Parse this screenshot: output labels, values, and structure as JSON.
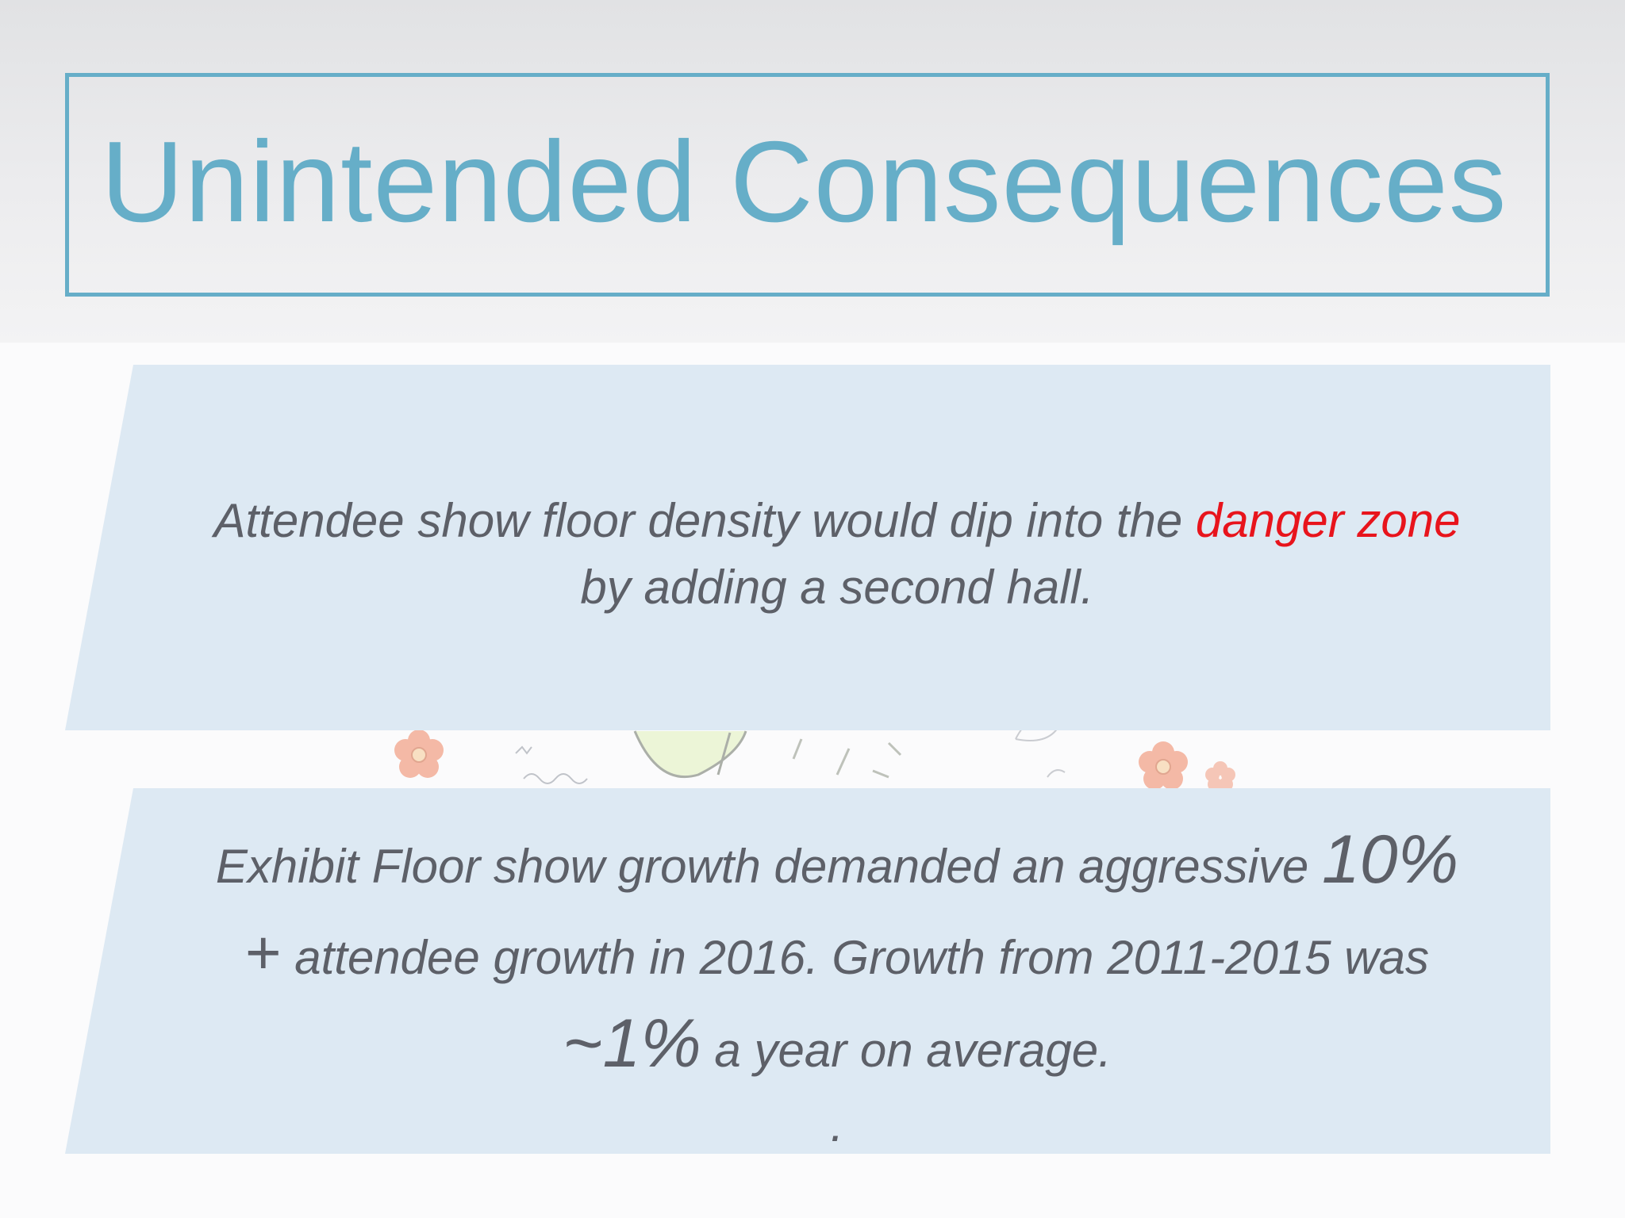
{
  "slide": {
    "title": "Unintended Consequences",
    "point1": {
      "text_before": "Attendee show floor density would dip into the ",
      "highlight": "danger zone",
      "text_after": "by adding a second hall."
    },
    "point2": {
      "text_1": "Exhibit Floor show growth demanded  an aggressive ",
      "big_1": "10%",
      "plus": "+",
      "text_2": " attendee growth in 2016.  Growth from 2011-2015 was",
      "big_2": "~1%",
      "text_3": " a year on average.",
      "trailing": "."
    }
  },
  "colors": {
    "title": "#66aec8",
    "panel": "#dde9f3",
    "body_text": "#5d6068",
    "highlight": "#e8141c"
  },
  "icons": [
    "flower-doodle",
    "lightbulb-doodle",
    "leaf-doodle"
  ]
}
